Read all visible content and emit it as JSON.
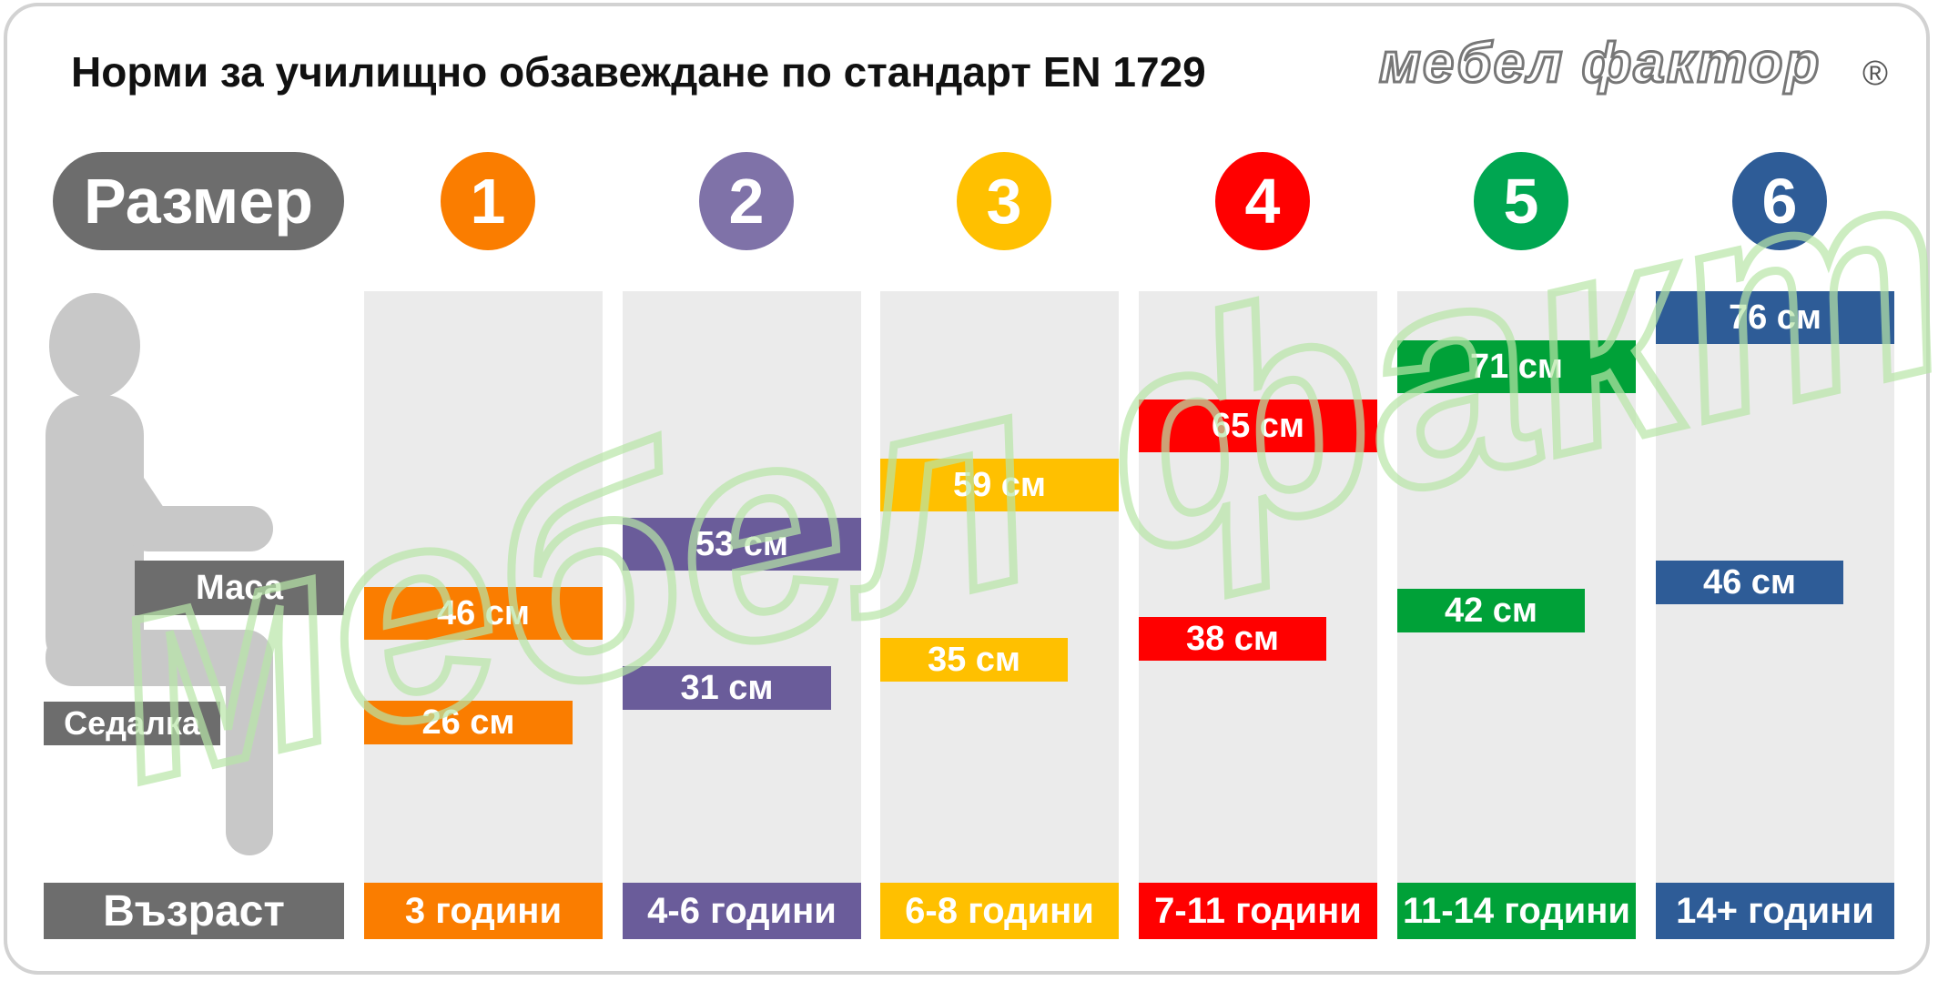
{
  "title": "Норми за училищно обзавеждане по стандарт EN 1729",
  "logo": {
    "text": "мебел фактор",
    "registered_mark": "®"
  },
  "labels": {
    "size": "Размер",
    "table": "Маса",
    "seat": "Седалка",
    "age": "Възраст"
  },
  "chart_data": {
    "type": "bar",
    "title": "Норми за училищно обзавеждане по стандарт EN 1729",
    "unit": "см",
    "categories": [
      "1",
      "2",
      "3",
      "4",
      "5",
      "6"
    ],
    "ages": [
      "3 години",
      "4-6 години",
      "6-8 години",
      "7-11 години",
      "11-14 години",
      "14+ години"
    ],
    "colors": [
      "#fa7d00",
      "#7f72a8",
      "#ffc000",
      "#ff0000",
      "#00a651",
      "#2e5c97"
    ],
    "bar_colors": [
      "#fa7d00",
      "#6a5c9a",
      "#ffc000",
      "#ff0000",
      "#00a138",
      "#2e5c97"
    ],
    "series": [
      {
        "name": "Маса",
        "values": [
          46,
          53,
          59,
          65,
          71,
          76
        ],
        "labels": [
          "46 см",
          "53 см",
          "59 см",
          "65 см",
          "71 см",
          "76 см"
        ]
      },
      {
        "name": "Седалка",
        "values": [
          26,
          31,
          35,
          38,
          42,
          46
        ],
        "labels": [
          "26 см",
          "31 см",
          "35 см",
          "38 см",
          "42 см",
          "46 см"
        ]
      }
    ]
  }
}
